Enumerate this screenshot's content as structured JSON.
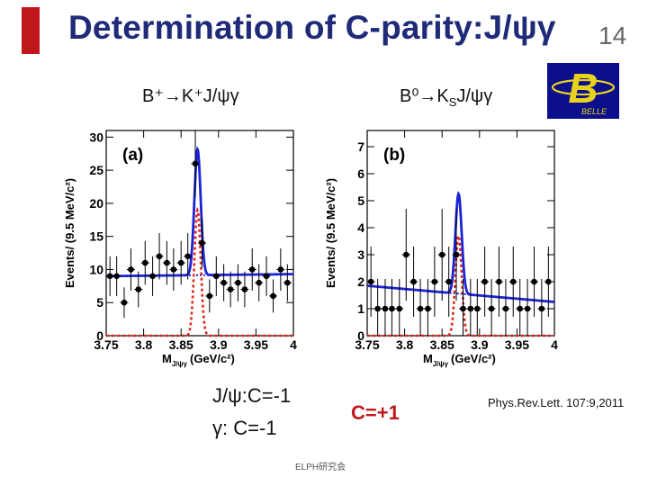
{
  "slide": {
    "title": "Determination of C-parity:J/ψγ",
    "number": "14",
    "decay_left": "B⁺→K⁺J/ψγ",
    "decay_right_main": "B⁰→K",
    "decay_right_sub": "S",
    "decay_right_tail": "J/ψγ",
    "logo_text": "BELLE",
    "note_jpsi": "J/ψ:C=-1",
    "note_gamma": "γ: C=-1",
    "c_result": "C=+1",
    "reference": "Phys.Rev.Lett. 107:9,2011",
    "footer": "ELPH研究会"
  },
  "colors": {
    "title": "#1f2a78",
    "accent_red": "#c0171d",
    "fit_total": "#1a23d6",
    "fit_signal": "#e0261d"
  },
  "chart_data": [
    {
      "type": "scatter",
      "panel_label": "(a)",
      "xlabel": "M",
      "xlabel_sub": "J/ψγ",
      "xlabel_unit": "(GeV/c²)",
      "ylabel": "Events/ (9.5 MeV/c²)",
      "xlim": [
        3.75,
        4.0
      ],
      "ylim": [
        0,
        31
      ],
      "x_ticks": [
        3.75,
        3.8,
        3.85,
        3.9,
        3.95,
        4.0
      ],
      "x_tick_labels": [
        "3.75",
        "3.8",
        "3.85",
        "3.9",
        "3.95",
        "4"
      ],
      "y_ticks": [
        0,
        5,
        10,
        15,
        20,
        25,
        30
      ],
      "y_tick_labels": [
        "0",
        "5",
        "10",
        "15",
        "20",
        "25",
        "30"
      ],
      "points": [
        {
          "x": 3.755,
          "y": 9,
          "err": 3
        },
        {
          "x": 3.764,
          "y": 9,
          "err": 3
        },
        {
          "x": 3.774,
          "y": 5,
          "err": 2.3
        },
        {
          "x": 3.783,
          "y": 10,
          "err": 3.2
        },
        {
          "x": 3.793,
          "y": 7,
          "err": 2.7
        },
        {
          "x": 3.802,
          "y": 11,
          "err": 3.3
        },
        {
          "x": 3.812,
          "y": 9,
          "err": 3
        },
        {
          "x": 3.821,
          "y": 12,
          "err": 3.5
        },
        {
          "x": 3.831,
          "y": 11,
          "err": 3.3
        },
        {
          "x": 3.84,
          "y": 10,
          "err": 3.2
        },
        {
          "x": 3.85,
          "y": 11,
          "err": 3.3
        },
        {
          "x": 3.859,
          "y": 12,
          "err": 3.5
        },
        {
          "x": 3.869,
          "y": 26,
          "err": 5.1
        },
        {
          "x": 3.878,
          "y": 14,
          "err": 3.7
        },
        {
          "x": 3.888,
          "y": 6,
          "err": 2.5
        },
        {
          "x": 3.897,
          "y": 9,
          "err": 3
        },
        {
          "x": 3.907,
          "y": 8,
          "err": 2.8
        },
        {
          "x": 3.916,
          "y": 7,
          "err": 2.7
        },
        {
          "x": 3.926,
          "y": 8,
          "err": 2.8
        },
        {
          "x": 3.935,
          "y": 7,
          "err": 2.7
        },
        {
          "x": 3.945,
          "y": 10,
          "err": 3.2
        },
        {
          "x": 3.954,
          "y": 8,
          "err": 2.8
        },
        {
          "x": 3.964,
          "y": 9,
          "err": 3
        },
        {
          "x": 3.973,
          "y": 6,
          "err": 2.5
        },
        {
          "x": 3.983,
          "y": 10,
          "err": 3.2
        },
        {
          "x": 3.992,
          "y": 8,
          "err": 2.8
        }
      ],
      "signal_peak": {
        "mean": 3.872,
        "sigma": 0.0042,
        "amplitude": 19
      },
      "background": {
        "at_xmin": 9.0,
        "at_xmax": 9.3
      }
    },
    {
      "type": "scatter",
      "panel_label": "(b)",
      "xlabel": "M",
      "xlabel_sub": "J/ψγ",
      "xlabel_unit": "(GeV/c²)",
      "ylabel": "Events/ (9.5 MeV/c²)",
      "xlim": [
        3.75,
        4.0
      ],
      "ylim": [
        0,
        7.6
      ],
      "x_ticks": [
        3.75,
        3.8,
        3.85,
        3.9,
        3.95,
        4.0
      ],
      "x_tick_labels": [
        "3.75",
        "3.8",
        "3.85",
        "3.9",
        "3.95",
        "4"
      ],
      "y_ticks": [
        0,
        1,
        2,
        3,
        4,
        5,
        6,
        7
      ],
      "y_tick_labels": [
        "0",
        "1",
        "2",
        "3",
        "4",
        "5",
        "6",
        "7"
      ],
      "points": [
        {
          "x": 3.755,
          "y": 2,
          "err": 1.3
        },
        {
          "x": 3.764,
          "y": 1,
          "err": 1.1
        },
        {
          "x": 3.774,
          "y": 1,
          "err": 1.1
        },
        {
          "x": 3.783,
          "y": 1,
          "err": 1.1
        },
        {
          "x": 3.793,
          "y": 1,
          "err": 1.1
        },
        {
          "x": 3.802,
          "y": 3,
          "err": 1.7
        },
        {
          "x": 3.812,
          "y": 2,
          "err": 1.3
        },
        {
          "x": 3.821,
          "y": 1,
          "err": 1.1
        },
        {
          "x": 3.831,
          "y": 1,
          "err": 1.1
        },
        {
          "x": 3.84,
          "y": 2,
          "err": 1.3
        },
        {
          "x": 3.85,
          "y": 3,
          "err": 1.7
        },
        {
          "x": 3.859,
          "y": 2,
          "err": 1.3
        },
        {
          "x": 3.869,
          "y": 3,
          "err": 1.7
        },
        {
          "x": 3.878,
          "y": 1,
          "err": 1.1
        },
        {
          "x": 3.888,
          "y": 1,
          "err": 1.1
        },
        {
          "x": 3.897,
          "y": 1,
          "err": 1.1
        },
        {
          "x": 3.907,
          "y": 2,
          "err": 1.3
        },
        {
          "x": 3.916,
          "y": 1,
          "err": 1.1
        },
        {
          "x": 3.926,
          "y": 2,
          "err": 1.3
        },
        {
          "x": 3.935,
          "y": 1,
          "err": 1.1
        },
        {
          "x": 3.945,
          "y": 2,
          "err": 1.3
        },
        {
          "x": 3.954,
          "y": 1,
          "err": 1.1
        },
        {
          "x": 3.964,
          "y": 1,
          "err": 1.1
        },
        {
          "x": 3.973,
          "y": 2,
          "err": 1.3
        },
        {
          "x": 3.983,
          "y": 1,
          "err": 1.1
        },
        {
          "x": 3.992,
          "y": 2,
          "err": 1.3
        }
      ],
      "signal_peak": {
        "mean": 3.872,
        "sigma": 0.0042,
        "amplitude": 3.7
      },
      "background": {
        "at_xmin": 1.85,
        "at_xmax": 1.25
      }
    }
  ]
}
